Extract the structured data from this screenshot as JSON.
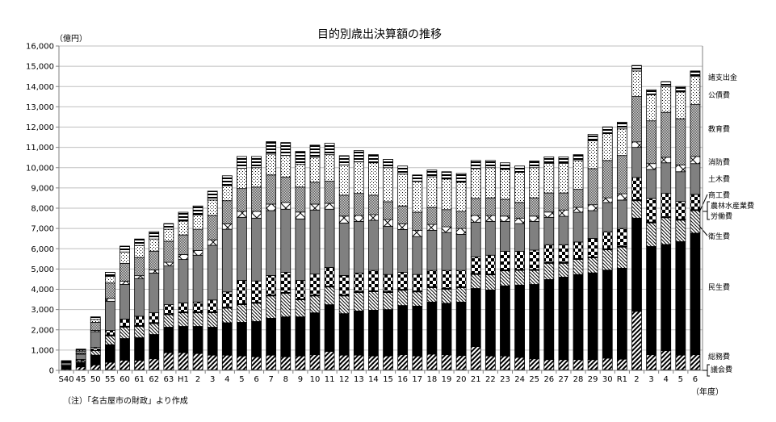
{
  "chart_data": {
    "type": "bar",
    "stacked": true,
    "title": "目的別歳出決算額の推移",
    "ylabel": "（億円）",
    "xlabel": "（年度）",
    "note": "（注）「名古屋市の財政」より作成",
    "ylim": [
      0,
      16000
    ],
    "yticks": [
      "0",
      "1,000",
      "2,000",
      "3,000",
      "4,000",
      "5,000",
      "6,000",
      "7,000",
      "8,000",
      "9,000",
      "10,000",
      "11,000",
      "12,000",
      "13,000",
      "14,000",
      "15,000",
      "16,000"
    ],
    "grid": true,
    "legend_placement": "right",
    "categories": [
      "S40",
      "45",
      "50",
      "55",
      "60",
      "61",
      "62",
      "63",
      "H1",
      "2",
      "3",
      "4",
      "5",
      "6",
      "7",
      "8",
      "9",
      "10",
      "11",
      "12",
      "13",
      "14",
      "15",
      "16",
      "17",
      "18",
      "19",
      "20",
      "21",
      "22",
      "23",
      "24",
      "25",
      "26",
      "27",
      "28",
      "29",
      "30",
      "R1",
      "2",
      "3",
      "4",
      "5",
      "6"
    ],
    "series": [
      {
        "name": "議会費",
        "pattern": "plain",
        "values": [
          10,
          15,
          25,
          30,
          30,
          30,
          30,
          30,
          30,
          30,
          30,
          30,
          30,
          30,
          30,
          30,
          30,
          30,
          30,
          30,
          30,
          30,
          30,
          30,
          30,
          30,
          30,
          30,
          30,
          30,
          30,
          30,
          30,
          30,
          30,
          30,
          30,
          30,
          30,
          30,
          30,
          30,
          30,
          30
        ]
      },
      {
        "name": "総務費",
        "pattern": "diag-fwd",
        "values": [
          40,
          155,
          245,
          370,
          470,
          470,
          540,
          840,
          840,
          800,
          720,
          720,
          680,
          640,
          720,
          640,
          680,
          740,
          900,
          720,
          720,
          680,
          680,
          740,
          680,
          770,
          740,
          700,
          1140,
          680,
          680,
          610,
          540,
          500,
          500,
          500,
          500,
          570,
          520,
          2880,
          740,
          940,
          720,
          740
        ]
      },
      {
        "name": "民生費",
        "pattern": "black",
        "values": [
          160,
          230,
          480,
          870,
          1070,
          1110,
          1200,
          1260,
          1300,
          1340,
          1380,
          1600,
          1660,
          1740,
          1820,
          1970,
          1930,
          2070,
          2310,
          2050,
          2180,
          2260,
          2290,
          2430,
          2460,
          2570,
          2540,
          2640,
          2870,
          3260,
          3460,
          3570,
          3670,
          3950,
          4070,
          4200,
          4280,
          4350,
          4490,
          4600,
          5340,
          5240,
          5600,
          6000
        ]
      },
      {
        "name": "衛生費",
        "pattern": "diag-back",
        "values": [
          20,
          70,
          220,
          430,
          560,
          560,
          540,
          620,
          670,
          670,
          710,
          720,
          870,
          900,
          1100,
          1160,
          840,
          830,
          870,
          870,
          910,
          910,
          840,
          750,
          700,
          710,
          690,
          710,
          690,
          740,
          740,
          720,
          690,
          800,
          680,
          740,
          740,
          1000,
          1040,
          860,
          1160,
          1320,
          1060,
          1110
        ]
      },
      {
        "name": "労働費",
        "pattern": "plain",
        "values": [
          5,
          5,
          10,
          20,
          20,
          20,
          20,
          20,
          20,
          20,
          20,
          20,
          20,
          20,
          20,
          20,
          20,
          20,
          20,
          20,
          20,
          20,
          20,
          20,
          20,
          20,
          20,
          20,
          20,
          20,
          20,
          20,
          20,
          20,
          20,
          20,
          20,
          20,
          20,
          20,
          20,
          20,
          20,
          20
        ]
      },
      {
        "name": "農林水産業費",
        "pattern": "plain",
        "values": [
          5,
          5,
          15,
          30,
          30,
          30,
          30,
          30,
          30,
          30,
          30,
          30,
          30,
          30,
          30,
          30,
          30,
          30,
          30,
          30,
          30,
          30,
          30,
          30,
          30,
          30,
          30,
          30,
          30,
          30,
          30,
          30,
          30,
          30,
          30,
          30,
          30,
          30,
          30,
          30,
          30,
          30,
          30,
          30
        ]
      },
      {
        "name": "商工費",
        "pattern": "checker",
        "values": [
          10,
          60,
          135,
          220,
          350,
          450,
          480,
          440,
          440,
          480,
          580,
          750,
          1150,
          1050,
          960,
          990,
          910,
          1030,
          920,
          960,
          910,
          1000,
          840,
          840,
          810,
          800,
          880,
          800,
          820,
          920,
          910,
          890,
          950,
          870,
          870,
          810,
          910,
          840,
          870,
          1090,
          1160,
          1150,
          870,
          750
        ]
      },
      {
        "name": "土木費",
        "pattern": "gray",
        "values": [
          120,
          260,
          780,
          1440,
          1710,
          1860,
          1960,
          1910,
          2140,
          2310,
          2700,
          3090,
          3110,
          3100,
          3200,
          3110,
          3030,
          3160,
          2870,
          2590,
          2550,
          2470,
          2380,
          2110,
          1870,
          1980,
          1870,
          1780,
          1710,
          1670,
          1480,
          1370,
          1420,
          1350,
          1400,
          1470,
          1370,
          1440,
          1400,
          1490,
          1430,
          1510,
          1470,
          1520
        ]
      },
      {
        "name": "消防費",
        "pattern": "cross",
        "values": [
          20,
          30,
          60,
          140,
          160,
          140,
          150,
          180,
          240,
          230,
          270,
          270,
          290,
          330,
          320,
          330,
          340,
          290,
          290,
          340,
          290,
          280,
          330,
          280,
          310,
          290,
          280,
          290,
          330,
          290,
          260,
          270,
          260,
          260,
          310,
          240,
          290,
          230,
          310,
          270,
          290,
          270,
          330,
          350
        ]
      },
      {
        "name": "教育費",
        "pattern": "fine-checker",
        "values": [
          30,
          100,
          400,
          760,
          880,
          900,
          930,
          1040,
          970,
          1050,
          1200,
          1140,
          1130,
          1200,
          1440,
          1250,
          1230,
          1080,
          1090,
          1030,
          1090,
          960,
          880,
          880,
          890,
          840,
          850,
          840,
          840,
          870,
          830,
          770,
          900,
          940,
          840,
          890,
          1780,
          1840,
          1890,
          2240,
          2110,
          2220,
          2280,
          2560
        ]
      },
      {
        "name": "公債費",
        "pattern": "dots",
        "values": [
          30,
          60,
          140,
          330,
          560,
          590,
          600,
          590,
          680,
          710,
          760,
          740,
          1000,
          960,
          1030,
          1070,
          1120,
          1230,
          1310,
          1490,
          1550,
          1600,
          1680,
          1570,
          1510,
          1510,
          1510,
          1440,
          1470,
          1490,
          1470,
          1490,
          1490,
          1460,
          1460,
          1420,
          1380,
          1330,
          1310,
          1260,
          1290,
          1270,
          1320,
          1400
        ]
      },
      {
        "name": "諸支出金",
        "pattern": "hstripes",
        "values": [
          30,
          60,
          130,
          200,
          290,
          320,
          360,
          280,
          440,
          440,
          440,
          490,
          580,
          550,
          610,
          640,
          640,
          600,
          560,
          460,
          560,
          400,
          410,
          400,
          330,
          330,
          360,
          430,
          400,
          350,
          330,
          310,
          330,
          320,
          320,
          290,
          310,
          330,
          330,
          270,
          240,
          240,
          270,
          260
        ]
      }
    ],
    "legend": [
      {
        "label": "諸支出金"
      },
      {
        "label": "公債費"
      },
      {
        "label": "教育費"
      },
      {
        "label": "消防費"
      },
      {
        "label": "土木費"
      },
      {
        "label": "商工費"
      },
      {
        "label": "農林水産業費"
      },
      {
        "label": "労働費"
      },
      {
        "label": "衛生費"
      },
      {
        "label": "民生費"
      },
      {
        "label": "総務費"
      },
      {
        "label": "議会費"
      }
    ],
    "colors": {
      "grid": "#bfbfbf",
      "axis": "#808080",
      "gray": "#808080",
      "fine": "#a0a0a0"
    }
  }
}
